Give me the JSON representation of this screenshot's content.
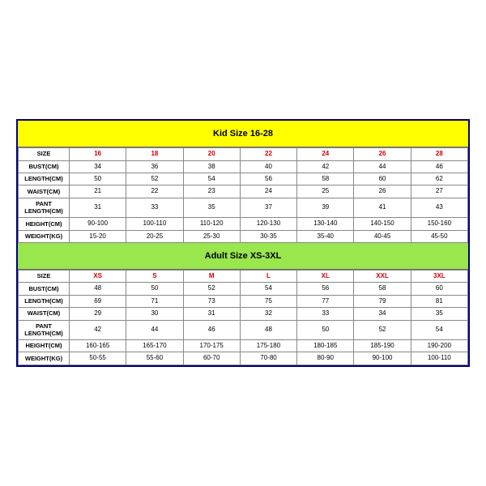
{
  "kid": {
    "title": "Kid Size 16-28",
    "title_bg": "#ffff00",
    "size_label": "SIZE",
    "size_color": "#d00000",
    "sizes": [
      "16",
      "18",
      "20",
      "22",
      "24",
      "26",
      "28"
    ],
    "rows": [
      {
        "label": "BUST(CM)",
        "vals": [
          "34",
          "36",
          "38",
          "40",
          "42",
          "44",
          "46"
        ]
      },
      {
        "label": "LENGTH(CM)",
        "vals": [
          "50",
          "52",
          "54",
          "56",
          "58",
          "60",
          "62"
        ]
      },
      {
        "label": "WAIST(CM)",
        "vals": [
          "21",
          "22",
          "23",
          "24",
          "25",
          "26",
          "27"
        ]
      },
      {
        "label": "PANT LENGTH(CM)",
        "vals": [
          "31",
          "33",
          "35",
          "37",
          "39",
          "41",
          "43"
        ]
      },
      {
        "label": "HEIGHT(CM)",
        "vals": [
          "90-100",
          "100-110",
          "110-120",
          "120-130",
          "130-140",
          "140-150",
          "150-160"
        ]
      },
      {
        "label": "WEIGHT(KG)",
        "vals": [
          "15-20",
          "20-25",
          "25-30",
          "30-35",
          "35-40",
          "40-45",
          "45-50"
        ]
      }
    ]
  },
  "adult": {
    "title": "Adult Size XS-3XL",
    "title_bg": "#99e64d",
    "size_label": "SIZE",
    "size_color": "#d00000",
    "sizes": [
      "XS",
      "S",
      "M",
      "L",
      "XL",
      "XXL",
      "3XL"
    ],
    "rows": [
      {
        "label": "BUST(CM)",
        "vals": [
          "48",
          "50",
          "52",
          "54",
          "56",
          "58",
          "60"
        ]
      },
      {
        "label": "LENGTH(CM)",
        "vals": [
          "69",
          "71",
          "73",
          "75",
          "77",
          "79",
          "81"
        ]
      },
      {
        "label": "WAIST(CM)",
        "vals": [
          "29",
          "30",
          "31",
          "32",
          "33",
          "34",
          "35"
        ]
      },
      {
        "label": "PANT LENGTH(CM)",
        "vals": [
          "42",
          "44",
          "46",
          "48",
          "50",
          "52",
          "54"
        ]
      },
      {
        "label": "HEIGHT(CM)",
        "vals": [
          "160-165",
          "165-170",
          "170-175",
          "175-180",
          "180-185",
          "185-190",
          "190-200"
        ]
      },
      {
        "label": "WEIGHT(KG)",
        "vals": [
          "50-55",
          "55-60",
          "60-70",
          "70-80",
          "80-90",
          "90-100",
          "100-110"
        ]
      }
    ]
  },
  "border_color": "#000080",
  "background": "#ffffff"
}
